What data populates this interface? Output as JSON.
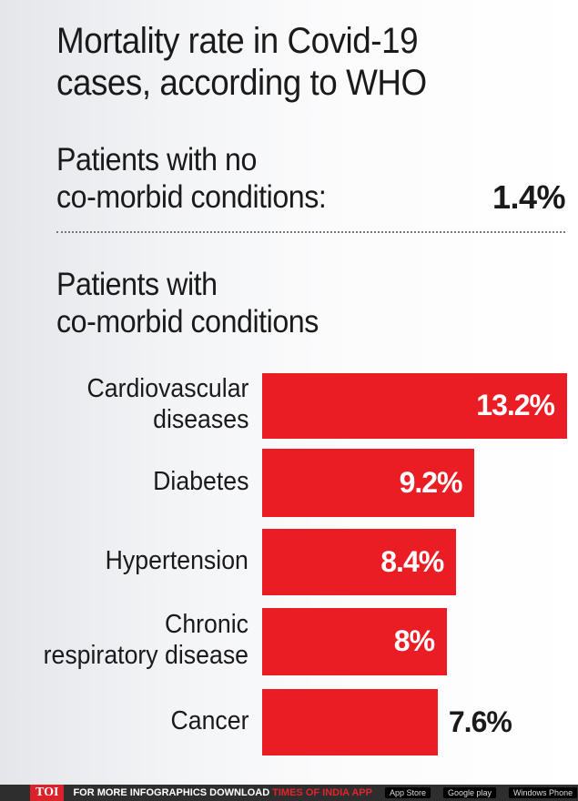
{
  "title_line1": "Mortality rate in Covid-19",
  "title_line2": "cases, according to WHO",
  "no_comorbid": {
    "line1": "Patients with no",
    "line2": "co-morbid conditions:",
    "value": "1.4%"
  },
  "comorbid": {
    "line1": "Patients with",
    "line2": "co-morbid conditions"
  },
  "chart_data": {
    "type": "bar",
    "orientation": "horizontal",
    "title": "Mortality rate in Covid-19 cases, according to WHO",
    "categories": [
      [
        "Cardiovascular",
        "diseases"
      ],
      [
        "Diabetes"
      ],
      [
        "Hypertension"
      ],
      [
        "Chronic",
        "respiratory disease"
      ],
      [
        "Cancer"
      ]
    ],
    "values": [
      13.2,
      9.2,
      8.4,
      8,
      7.6
    ],
    "labels": [
      "13.2%",
      "9.2%",
      "8.4%",
      "8%",
      "7.6%"
    ],
    "unit": "%",
    "bar_color": "#ea1c24",
    "xlim": [
      0,
      13.2
    ]
  },
  "footer": {
    "logo": "TOI",
    "text": "FOR MORE  INFOGRAPHICS DOWNLOAD",
    "app": "TIMES OF INDIA  APP",
    "stores": [
      "App Store",
      "Google play",
      "Windows Phone"
    ]
  }
}
